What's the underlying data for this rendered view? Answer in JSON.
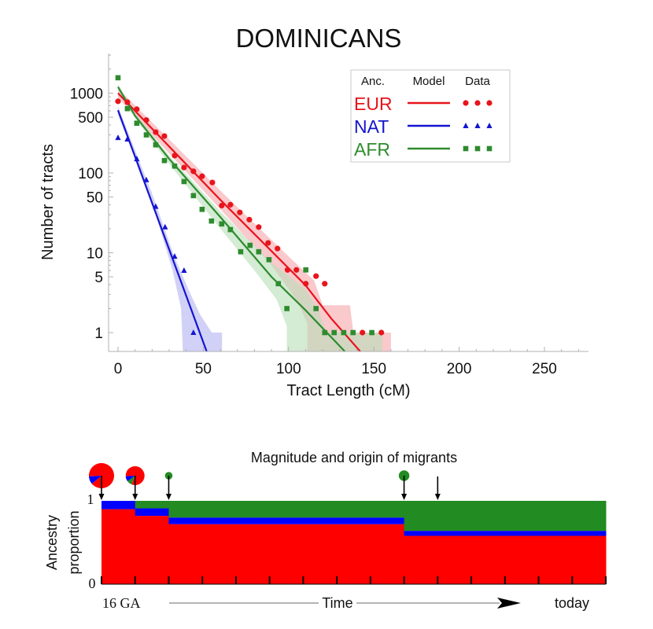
{
  "chart_data": [
    {
      "type": "scatter",
      "title": "DOMINICANS",
      "xlabel": "Tract Length (cM)",
      "ylabel": "Number of tracts",
      "xlim": [
        -5,
        275
      ],
      "ylim": [
        0.58,
        3160
      ],
      "yscale": "log",
      "x_ticks": [
        0,
        50,
        100,
        150,
        200,
        250
      ],
      "x_tick_labels": [
        "0",
        "50",
        "100",
        "150",
        "200",
        "250"
      ],
      "y_ticks": [
        1,
        5,
        10,
        50,
        100,
        500,
        1000
      ],
      "y_tick_labels": [
        "1",
        "5",
        "10",
        "50",
        "100",
        "500",
        "1000"
      ],
      "grid": false,
      "legend": {
        "placement": "top-right",
        "headers": [
          "Anc.",
          "Model",
          "Data"
        ],
        "entries": [
          {
            "name": "EUR",
            "color": "#e8141c",
            "marker": "circle"
          },
          {
            "name": "NAT",
            "color": "#1414d0",
            "marker": "triangle"
          },
          {
            "name": "AFR",
            "color": "#2e8b2e",
            "marker": "square"
          }
        ]
      },
      "series": [
        {
          "name": "EUR",
          "color": "#e8141c",
          "band_color": "#f7a8ac",
          "data": [
            [
              0,
              790
            ],
            [
              5.5,
              770
            ],
            [
              11,
              630
            ],
            [
              16.6,
              460
            ],
            [
              22.1,
              325
            ],
            [
              27.2,
              290
            ],
            [
              33.2,
              165
            ],
            [
              38.7,
              117
            ],
            [
              44.2,
              105
            ],
            [
              49.3,
              91
            ],
            [
              55.3,
              76
            ],
            [
              60.8,
              39
            ],
            [
              65.9,
              40
            ],
            [
              71.4,
              32
            ],
            [
              77,
              26
            ],
            [
              82.5,
              21
            ],
            [
              88,
              13.3
            ],
            [
              93.5,
              11.3
            ],
            [
              99.4,
              6.1
            ],
            [
              104.6,
              6.1
            ],
            [
              110.1,
              4.1
            ],
            [
              116.1,
              5.1
            ],
            [
              121.2,
              4.1
            ],
            [
              143.3,
              1
            ],
            [
              154.4,
              1
            ]
          ],
          "model": [
            [
              0,
              1000
            ],
            [
              60,
              46
            ],
            [
              110,
              3.9
            ],
            [
              125,
              1.5
            ],
            [
              142,
              0.58
            ]
          ],
          "band_upper": [
            [
              0,
              1150
            ],
            [
              60,
              60
            ],
            [
              100,
              9
            ],
            [
              115,
              4.5
            ],
            [
              120,
              2.2
            ],
            [
              136,
              2.2
            ],
            [
              138,
              1
            ],
            [
              160,
              1
            ],
            [
              160,
              0.58
            ]
          ],
          "band_lower": [
            [
              111,
              0.58
            ],
            [
              111,
              1.3
            ],
            [
              105,
              2.5
            ],
            [
              90,
              7
            ],
            [
              60,
              35
            ],
            [
              0,
              880
            ]
          ]
        },
        {
          "name": "NAT",
          "color": "#1414d0",
          "band_color": "#b4b4f2",
          "data": [
            [
              0,
              277
            ],
            [
              5.5,
              265
            ],
            [
              11,
              150
            ],
            [
              16.6,
              82
            ],
            [
              22.1,
              38
            ],
            [
              27.6,
              21
            ],
            [
              33.2,
              9
            ],
            [
              38.7,
              6
            ],
            [
              44.2,
              1
            ]
          ],
          "model": [
            [
              0,
              610
            ],
            [
              52,
              0.58
            ]
          ],
          "band_upper": [
            [
              0,
              680
            ],
            [
              20,
              55
            ],
            [
              33,
              9
            ],
            [
              42,
              3.2
            ],
            [
              48,
              1.7
            ],
            [
              55,
              1
            ],
            [
              61,
              1
            ],
            [
              61,
              0.58
            ]
          ],
          "band_lower": [
            [
              38,
              0.58
            ],
            [
              37,
              2
            ],
            [
              32,
              6
            ],
            [
              20,
              42
            ],
            [
              0,
              540
            ]
          ]
        },
        {
          "name": "AFR",
          "color": "#2e8b2e",
          "band_color": "#b9dfb9",
          "data": [
            [
              0,
              1560
            ],
            [
              5.5,
              640
            ],
            [
              11,
              420
            ],
            [
              16.6,
              300
            ],
            [
              22.1,
              225
            ],
            [
              27.2,
              143
            ],
            [
              33.2,
              122
            ],
            [
              38.7,
              78
            ],
            [
              44.2,
              52
            ],
            [
              49.3,
              35
            ],
            [
              54.8,
              25
            ],
            [
              60.8,
              23
            ],
            [
              65.9,
              19.5
            ],
            [
              71.9,
              10.3
            ],
            [
              77.4,
              12.4
            ],
            [
              82.5,
              10.3
            ],
            [
              88.5,
              8.2
            ],
            [
              94,
              4.1
            ],
            [
              99,
              2
            ],
            [
              110.1,
              6.1
            ],
            [
              116.1,
              2
            ],
            [
              121.2,
              1
            ],
            [
              126.7,
              1
            ],
            [
              132.3,
              1
            ],
            [
              137.8,
              1
            ],
            [
              148.8,
              1
            ]
          ],
          "model": [
            [
              0,
              1200
            ],
            [
              10,
              520
            ],
            [
              30,
              150
            ],
            [
              60,
              28
            ],
            [
              90,
              5
            ],
            [
              110,
              1.9
            ],
            [
              133,
              0.58
            ]
          ],
          "band_upper": [
            [
              0,
              1300
            ],
            [
              10,
              560
            ],
            [
              30,
              165
            ],
            [
              60,
              33
            ],
            [
              90,
              7.5
            ],
            [
              110,
              3.5
            ],
            [
              118,
              1.8
            ],
            [
              122,
              1
            ],
            [
              155,
              1
            ],
            [
              155,
              0.58
            ]
          ],
          "band_lower": [
            [
              99,
              0.58
            ],
            [
              99,
              1.2
            ],
            [
              93,
              2.6
            ],
            [
              80,
              6
            ],
            [
              60,
              20
            ],
            [
              30,
              130
            ],
            [
              10,
              480
            ],
            [
              0,
              1100
            ]
          ]
        }
      ]
    },
    {
      "type": "area",
      "title": "Magnitude and origin of migrants",
      "ylabel": "Ancestry proportion",
      "y_ticks": [
        0,
        1
      ],
      "y_tick_labels": [
        "0",
        "1"
      ],
      "x_start_label": "16 GA",
      "x_axis_label": "Time",
      "x_end_label": "today",
      "n_generation_ticks": 16,
      "segments": [
        {
          "from_gen": 0,
          "to_gen": 1,
          "EUR": 0.9,
          "NAT": 0.1,
          "AFR": 0.0
        },
        {
          "from_gen": 1,
          "to_gen": 2,
          "EUR": 0.82,
          "NAT": 0.09,
          "AFR": 0.09
        },
        {
          "from_gen": 2,
          "to_gen": 9,
          "EUR": 0.72,
          "NAT": 0.08,
          "AFR": 0.2
        },
        {
          "from_gen": 9,
          "to_gen": 15,
          "EUR": 0.58,
          "NAT": 0.06,
          "AFR": 0.36
        }
      ],
      "migration_events": [
        {
          "gen": 0,
          "kind": "pie",
          "size": 1.0,
          "composition": {
            "EUR": 0.9,
            "NAT": 0.1,
            "AFR": 0.0
          }
        },
        {
          "gen": 1,
          "kind": "pie",
          "size": 0.75,
          "composition": {
            "EUR": 0.82,
            "NAT": 0.09,
            "AFR": 0.09
          }
        },
        {
          "gen": 2,
          "kind": "dot",
          "size": 0.3,
          "composition": {
            "EUR": 0,
            "NAT": 0,
            "AFR": 1
          }
        },
        {
          "gen": 9,
          "kind": "dot",
          "size": 0.42,
          "composition": {
            "EUR": 0,
            "NAT": 0,
            "AFR": 1
          }
        },
        {
          "gen": 10,
          "kind": "arrow",
          "size": 0,
          "composition": {
            "EUR": 0,
            "NAT": 0,
            "AFR": 0
          }
        }
      ],
      "colors": {
        "EUR": "#ff0000",
        "NAT": "#0000ff",
        "AFR": "#228b22"
      }
    }
  ]
}
